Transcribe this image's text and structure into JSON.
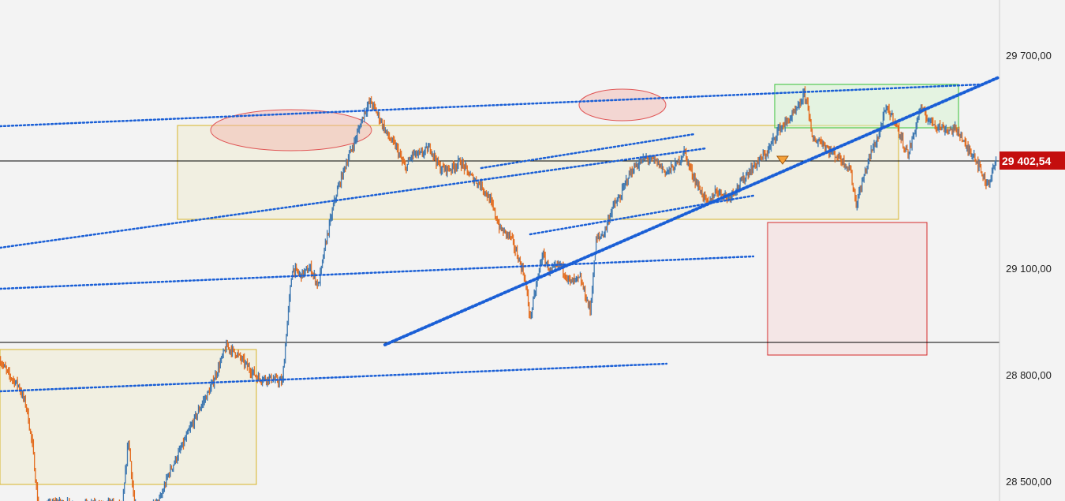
{
  "chart_data": {
    "type": "candlestick",
    "title": "",
    "xlabel": "",
    "ylabel": "",
    "ylim": [
      28420,
      29845
    ],
    "y_ticks": [
      {
        "value": 29700,
        "label": "29 700,00"
      },
      {
        "value": 29100,
        "label": "29 100,00"
      },
      {
        "value": 28800,
        "label": "28 800,00"
      },
      {
        "value": 28500,
        "label": "28 500,00"
      }
    ],
    "x_bars": 1000,
    "current_price": {
      "value": 29402.54,
      "label": "29 402,54"
    },
    "colors": {
      "up": "#3d77b0",
      "down": "#e36b1d",
      "trendline": "#1a5fd6",
      "range_box": "#d7b42a",
      "target_box": "#36c236",
      "stop_box": "#d42a2a",
      "ellipse": "#e05555",
      "price_tag": "#c40e0e",
      "horizontal_line": "#000000"
    },
    "price_path": [
      [
        0,
        28840
      ],
      [
        8,
        28800
      ],
      [
        18,
        28770
      ],
      [
        26,
        28710
      ],
      [
        32,
        28600
      ],
      [
        38,
        28420
      ],
      [
        58,
        28440
      ],
      [
        72,
        28430
      ],
      [
        90,
        28430
      ],
      [
        110,
        28435
      ],
      [
        122,
        28425
      ],
      [
        128,
        28620
      ],
      [
        134,
        28430
      ],
      [
        150,
        28420
      ],
      [
        160,
        28450
      ],
      [
        168,
        28520
      ],
      [
        175,
        28560
      ],
      [
        182,
        28600
      ],
      [
        190,
        28650
      ],
      [
        200,
        28710
      ],
      [
        210,
        28760
      ],
      [
        218,
        28820
      ],
      [
        226,
        28880
      ],
      [
        236,
        28860
      ],
      [
        248,
        28820
      ],
      [
        258,
        28790
      ],
      [
        268,
        28790
      ],
      [
        282,
        28780
      ],
      [
        287,
        28950
      ],
      [
        292,
        29100
      ],
      [
        300,
        29080
      ],
      [
        310,
        29100
      ],
      [
        318,
        29050
      ],
      [
        326,
        29180
      ],
      [
        335,
        29300
      ],
      [
        345,
        29390
      ],
      [
        356,
        29470
      ],
      [
        364,
        29540
      ],
      [
        370,
        29570
      ],
      [
        378,
        29530
      ],
      [
        388,
        29470
      ],
      [
        396,
        29440
      ],
      [
        405,
        29380
      ],
      [
        412,
        29420
      ],
      [
        420,
        29420
      ],
      [
        430,
        29440
      ],
      [
        440,
        29380
      ],
      [
        450,
        29380
      ],
      [
        460,
        29400
      ],
      [
        470,
        29360
      ],
      [
        482,
        29330
      ],
      [
        490,
        29290
      ],
      [
        500,
        29210
      ],
      [
        510,
        29190
      ],
      [
        518,
        29130
      ],
      [
        524,
        29080
      ],
      [
        530,
        28960
      ],
      [
        536,
        29050
      ],
      [
        542,
        29140
      ],
      [
        550,
        29090
      ],
      [
        560,
        29110
      ],
      [
        570,
        29060
      ],
      [
        580,
        29070
      ],
      [
        590,
        28980
      ],
      [
        596,
        29180
      ],
      [
        604,
        29200
      ],
      [
        612,
        29270
      ],
      [
        620,
        29300
      ],
      [
        628,
        29360
      ],
      [
        636,
        29390
      ],
      [
        646,
        29410
      ],
      [
        656,
        29400
      ],
      [
        666,
        29370
      ],
      [
        676,
        29390
      ],
      [
        684,
        29430
      ],
      [
        690,
        29380
      ],
      [
        698,
        29330
      ],
      [
        708,
        29280
      ],
      [
        716,
        29320
      ],
      [
        728,
        29300
      ],
      [
        738,
        29330
      ],
      [
        748,
        29370
      ],
      [
        758,
        29400
      ],
      [
        768,
        29430
      ],
      [
        778,
        29490
      ],
      [
        786,
        29510
      ],
      [
        792,
        29530
      ],
      [
        798,
        29550
      ],
      [
        804,
        29590
      ],
      [
        808,
        29560
      ],
      [
        812,
        29460
      ],
      [
        820,
        29460
      ],
      [
        830,
        29430
      ],
      [
        840,
        29410
      ],
      [
        850,
        29380
      ],
      [
        856,
        29280
      ],
      [
        862,
        29340
      ],
      [
        870,
        29420
      ],
      [
        878,
        29470
      ],
      [
        886,
        29550
      ],
      [
        894,
        29520
      ],
      [
        902,
        29460
      ],
      [
        908,
        29420
      ],
      [
        914,
        29480
      ],
      [
        920,
        29550
      ],
      [
        928,
        29520
      ],
      [
        938,
        29500
      ],
      [
        948,
        29490
      ],
      [
        958,
        29490
      ],
      [
        966,
        29440
      ],
      [
        974,
        29420
      ],
      [
        980,
        29380
      ],
      [
        986,
        29340
      ],
      [
        990,
        29350
      ],
      [
        996,
        29402
      ]
    ]
  },
  "current_price_label": "29 402,54"
}
